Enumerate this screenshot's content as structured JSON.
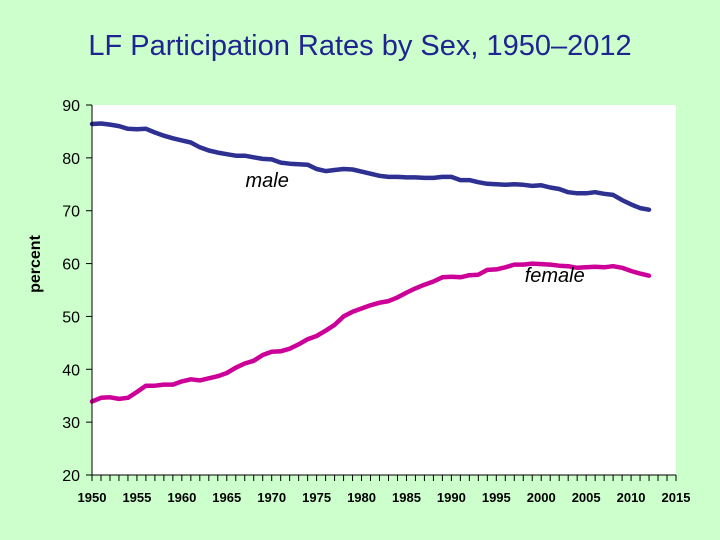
{
  "chart_data": {
    "type": "line",
    "title": "LF Participation Rates by Sex, 1950–2012",
    "xlabel": "",
    "ylabel": "percent",
    "xlim": [
      1950,
      2015
    ],
    "ylim": [
      20,
      90
    ],
    "yticks": [
      20,
      30,
      40,
      50,
      60,
      70,
      80,
      90
    ],
    "xticks": [
      1950,
      1955,
      1960,
      1965,
      1970,
      1975,
      1980,
      1985,
      1990,
      1995,
      2000,
      2005,
      2010,
      2015
    ],
    "x": [
      1950,
      1951,
      1952,
      1953,
      1954,
      1955,
      1956,
      1957,
      1958,
      1959,
      1960,
      1961,
      1962,
      1963,
      1964,
      1965,
      1966,
      1967,
      1968,
      1969,
      1970,
      1971,
      1972,
      1973,
      1974,
      1975,
      1976,
      1977,
      1978,
      1979,
      1980,
      1981,
      1982,
      1983,
      1984,
      1985,
      1986,
      1987,
      1988,
      1989,
      1990,
      1991,
      1992,
      1993,
      1994,
      1995,
      1996,
      1997,
      1998,
      1999,
      2000,
      2001,
      2002,
      2003,
      2004,
      2005,
      2006,
      2007,
      2008,
      2009,
      2010,
      2011,
      2012
    ],
    "series": [
      {
        "name": "male",
        "color": "#2e3192",
        "values": [
          86.4,
          86.5,
          86.3,
          86.0,
          85.5,
          85.4,
          85.5,
          84.8,
          84.2,
          83.7,
          83.3,
          82.9,
          82.0,
          81.4,
          81.0,
          80.7,
          80.4,
          80.4,
          80.1,
          79.8,
          79.7,
          79.1,
          78.9,
          78.8,
          78.7,
          77.9,
          77.5,
          77.7,
          77.9,
          77.8,
          77.4,
          77.0,
          76.6,
          76.4,
          76.4,
          76.3,
          76.3,
          76.2,
          76.2,
          76.4,
          76.4,
          75.8,
          75.8,
          75.4,
          75.1,
          75.0,
          74.9,
          75.0,
          74.9,
          74.7,
          74.8,
          74.4,
          74.1,
          73.5,
          73.3,
          73.3,
          73.5,
          73.2,
          73.0,
          72.0,
          71.2,
          70.5,
          70.2
        ]
      },
      {
        "name": "female",
        "color": "#cc0099",
        "values": [
          33.9,
          34.6,
          34.7,
          34.4,
          34.6,
          35.7,
          36.9,
          36.9,
          37.1,
          37.1,
          37.7,
          38.1,
          37.9,
          38.3,
          38.7,
          39.3,
          40.3,
          41.1,
          41.6,
          42.7,
          43.3,
          43.4,
          43.9,
          44.7,
          45.7,
          46.3,
          47.3,
          48.4,
          50.0,
          50.9,
          51.5,
          52.1,
          52.6,
          52.9,
          53.6,
          54.5,
          55.3,
          56.0,
          56.6,
          57.4,
          57.5,
          57.4,
          57.8,
          57.9,
          58.8,
          58.9,
          59.3,
          59.8,
          59.8,
          60.0,
          59.9,
          59.8,
          59.6,
          59.5,
          59.2,
          59.3,
          59.4,
          59.3,
          59.5,
          59.2,
          58.6,
          58.1,
          57.7
        ]
      }
    ],
    "annotations": [
      {
        "text": "male",
        "x": 1969.5,
        "y": 74.5
      },
      {
        "text": "female",
        "x": 2001.5,
        "y": 56.5
      }
    ],
    "grid": false,
    "legend": "none"
  }
}
